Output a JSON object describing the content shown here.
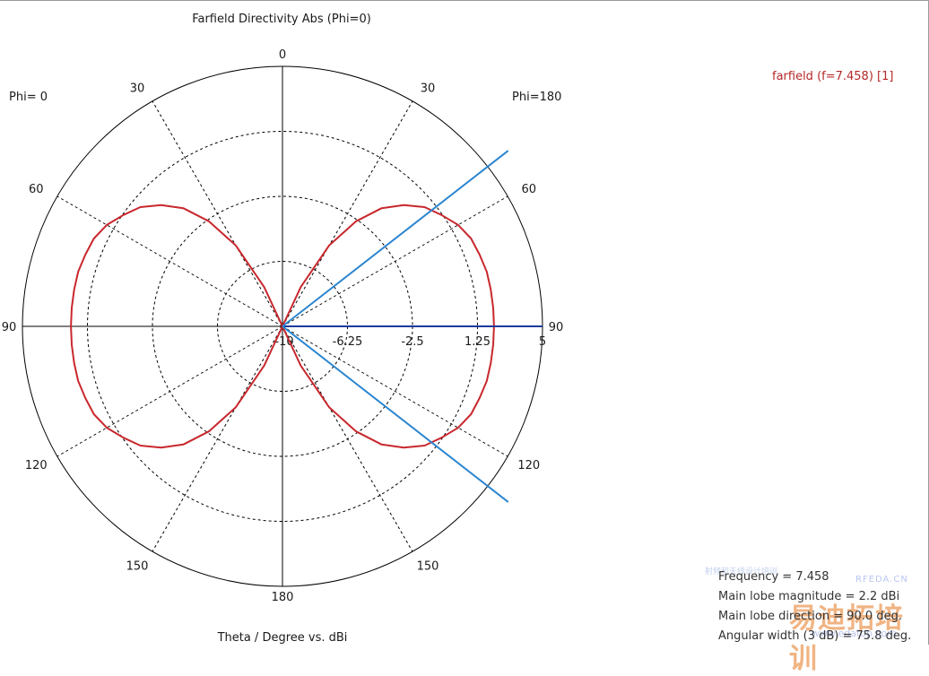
{
  "title": "Farfield Directivity Abs (Phi=0)",
  "phi_left": "Phi=  0",
  "phi_right": "Phi=180",
  "x_label": "Theta / Degree vs. dBi",
  "legend_label": "farfield (f=7.458) [1]",
  "info": {
    "frequency": "Frequency = 7.458",
    "magnitude": "Main lobe magnitude =   2.2 dBi",
    "direction": "Main lobe direction =  90.0 deg.",
    "width": "Angular width (3 dB) =  75.8 deg."
  },
  "watermark": {
    "site": "RFEDA.CN",
    "brand": "易迪拓培训",
    "url": "www.edatop.com",
    "small": "射频和天线设计培训"
  },
  "colors": {
    "series": "#c8282d",
    "main_lobe": "#1f3a9c",
    "beam_width": "#2a85d0",
    "axis": "#000000",
    "grid": "#000000"
  },
  "chart_data": {
    "type": "polar",
    "title": "Farfield Directivity Abs (Phi=0)",
    "xlabel": "Theta / Degree vs. dBi",
    "radial_range": [
      -10,
      5
    ],
    "radial_ticks": [
      -10,
      -6.25,
      -2.5,
      1.25,
      5
    ],
    "radial_tick_labels": [
      "-10",
      "-6.25",
      "-2.5",
      "1.25",
      "5"
    ],
    "angle_ticks_deg": [
      0,
      30,
      60,
      90,
      120,
      150,
      180
    ],
    "angle_tick_labels": [
      "0",
      "30",
      "60",
      "90",
      "120",
      "150",
      "180"
    ],
    "grid": true,
    "series": [
      {
        "name": "farfield (f=7.458) [1]",
        "theta_deg": [
          0,
          5,
          10,
          15,
          20,
          25,
          30,
          35,
          40,
          45,
          50,
          55,
          60,
          65,
          70,
          75,
          80,
          85,
          90,
          95,
          100,
          105,
          110,
          115,
          120,
          125,
          130,
          135,
          140,
          145,
          150,
          155,
          160,
          165,
          170,
          175,
          180
        ],
        "directivity_dbi": [
          -10,
          -10,
          -10,
          -10,
          -10,
          -7.5,
          -4.6,
          -2.6,
          -1.1,
          -0.1,
          0.7,
          1.2,
          1.7,
          2.0,
          2.1,
          2.2,
          2.2,
          2.2,
          2.2,
          2.2,
          2.2,
          2.2,
          2.1,
          2.0,
          1.7,
          1.2,
          0.7,
          -0.1,
          -1.1,
          -2.6,
          -4.6,
          -7.5,
          -10,
          -10,
          -10,
          -10,
          -10
        ]
      }
    ],
    "main_lobe": {
      "magnitude_dbi": 2.2,
      "direction_deg": 90.0,
      "angular_width_3db_deg": 75.8
    }
  }
}
